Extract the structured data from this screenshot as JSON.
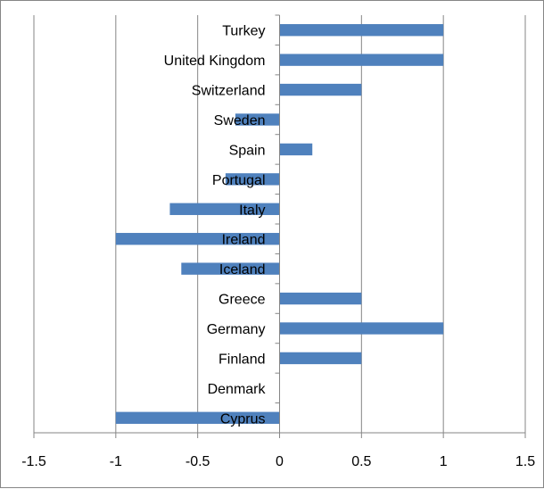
{
  "chart_data": {
    "type": "bar",
    "orientation": "horizontal",
    "title": "",
    "xlabel": "",
    "ylabel": "",
    "categories": [
      "Turkey",
      "United Kingdom",
      "Switzerland",
      "Sweden",
      "Spain",
      "Portugal",
      "Italy",
      "Ireland",
      "Iceland",
      "Greece",
      "Germany",
      "Finland",
      "Denmark",
      "Cyprus"
    ],
    "values": [
      1,
      1,
      0.5,
      -0.27,
      0.2,
      -0.33,
      -0.67,
      -1,
      -0.6,
      0.5,
      1,
      0.5,
      0,
      -1
    ],
    "xlim": [
      -1.5,
      1.5
    ],
    "xticks": [
      "-1.5",
      "-1",
      "-0.5",
      "0",
      "0.5",
      "1",
      "1.5"
    ],
    "xtick_values": [
      -1.5,
      -1,
      -0.5,
      0,
      0.5,
      1,
      1.5
    ],
    "grid": "vertical",
    "legend": "none",
    "bar_color": "#4f81bd",
    "grid_color": "#868686",
    "axis_color": "#868686"
  }
}
